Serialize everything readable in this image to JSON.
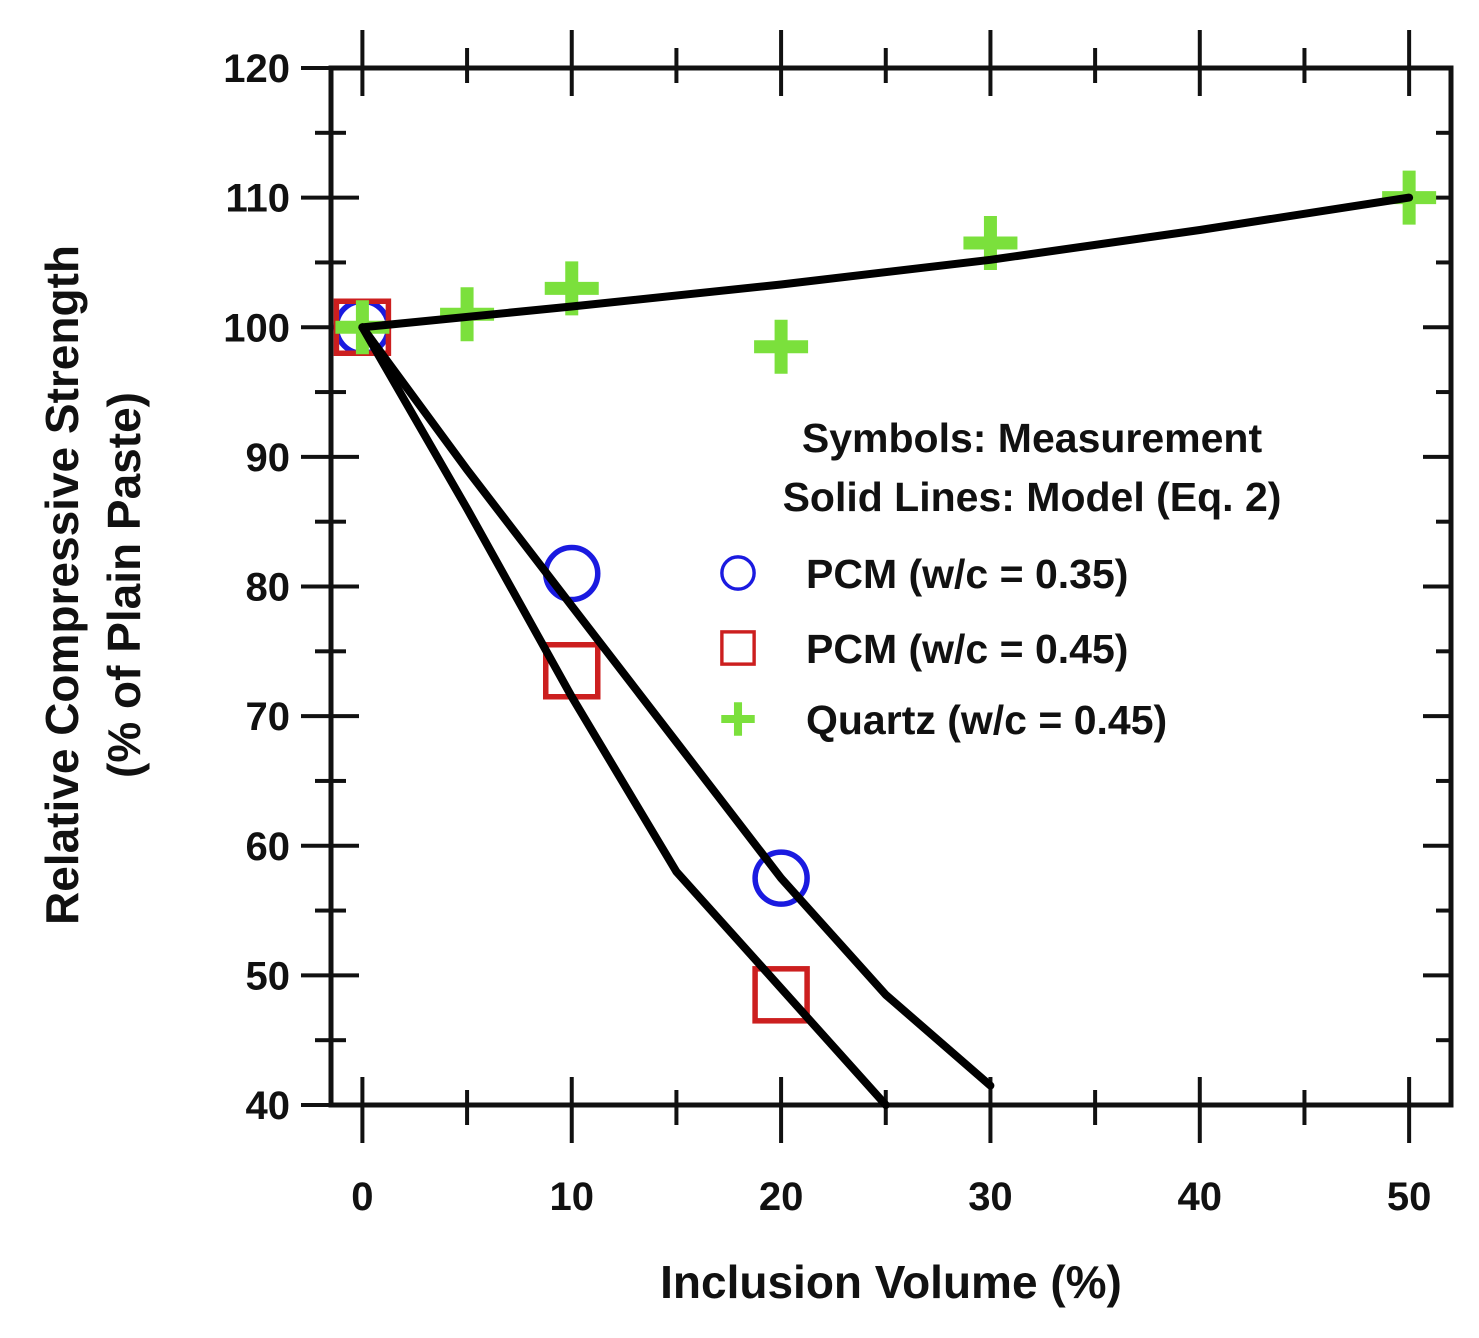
{
  "chart_data": {
    "type": "scatter",
    "title": "",
    "xlabel": "Inclusion Volume (%)",
    "ylabel_lines": [
      "Relative Compressive Strength",
      "(% of Plain Paste)"
    ],
    "xlim": [
      -1.5,
      52
    ],
    "ylim": [
      40,
      120
    ],
    "x_ticks": [
      0,
      10,
      20,
      30,
      40,
      50
    ],
    "x_minor_ticks": [
      5,
      15,
      25,
      35,
      45
    ],
    "y_ticks": [
      40,
      50,
      60,
      70,
      80,
      90,
      100,
      110,
      120
    ],
    "y_minor_ticks": [
      45,
      55,
      65,
      75,
      85,
      95,
      105,
      115
    ],
    "legend_notes": [
      "Symbols: Measurement",
      "Solid Lines: Model (Eq. 2)"
    ],
    "series": [
      {
        "name": "PCM (w/c = 0.35)",
        "marker": "circle",
        "color": "#1a1ae0",
        "x": [
          0,
          10,
          20
        ],
        "y": [
          100,
          81,
          57.5
        ]
      },
      {
        "name": "PCM (w/c = 0.45)",
        "marker": "square",
        "color": "#cc1f1f",
        "x": [
          0,
          10,
          20
        ],
        "y": [
          100,
          73.5,
          48.5
        ]
      },
      {
        "name": "Quartz (w/c = 0.45)",
        "marker": "plus",
        "color": "#7be03c",
        "x": [
          0,
          5,
          10,
          20,
          30,
          50
        ],
        "y": [
          100,
          101,
          103,
          98.5,
          106.5,
          110
        ]
      }
    ],
    "model_lines": [
      {
        "name": "Model PCM (w/c = 0.35)",
        "color": "#000000",
        "x": [
          0,
          5,
          10,
          15,
          20,
          25,
          30
        ],
        "y": [
          100,
          89,
          78.5,
          68,
          57.5,
          48.5,
          41.5
        ]
      },
      {
        "name": "Model PCM (w/c = 0.45)",
        "color": "#000000",
        "x": [
          0,
          5,
          10,
          15,
          20,
          25
        ],
        "y": [
          100,
          86,
          71.5,
          58,
          49,
          40
        ]
      },
      {
        "name": "Model Quartz (w/c = 0.45)",
        "color": "#000000",
        "x": [
          0,
          10,
          20,
          30,
          40,
          50
        ],
        "y": [
          100,
          101.6,
          103.3,
          105.2,
          107.5,
          110
        ]
      }
    ]
  }
}
